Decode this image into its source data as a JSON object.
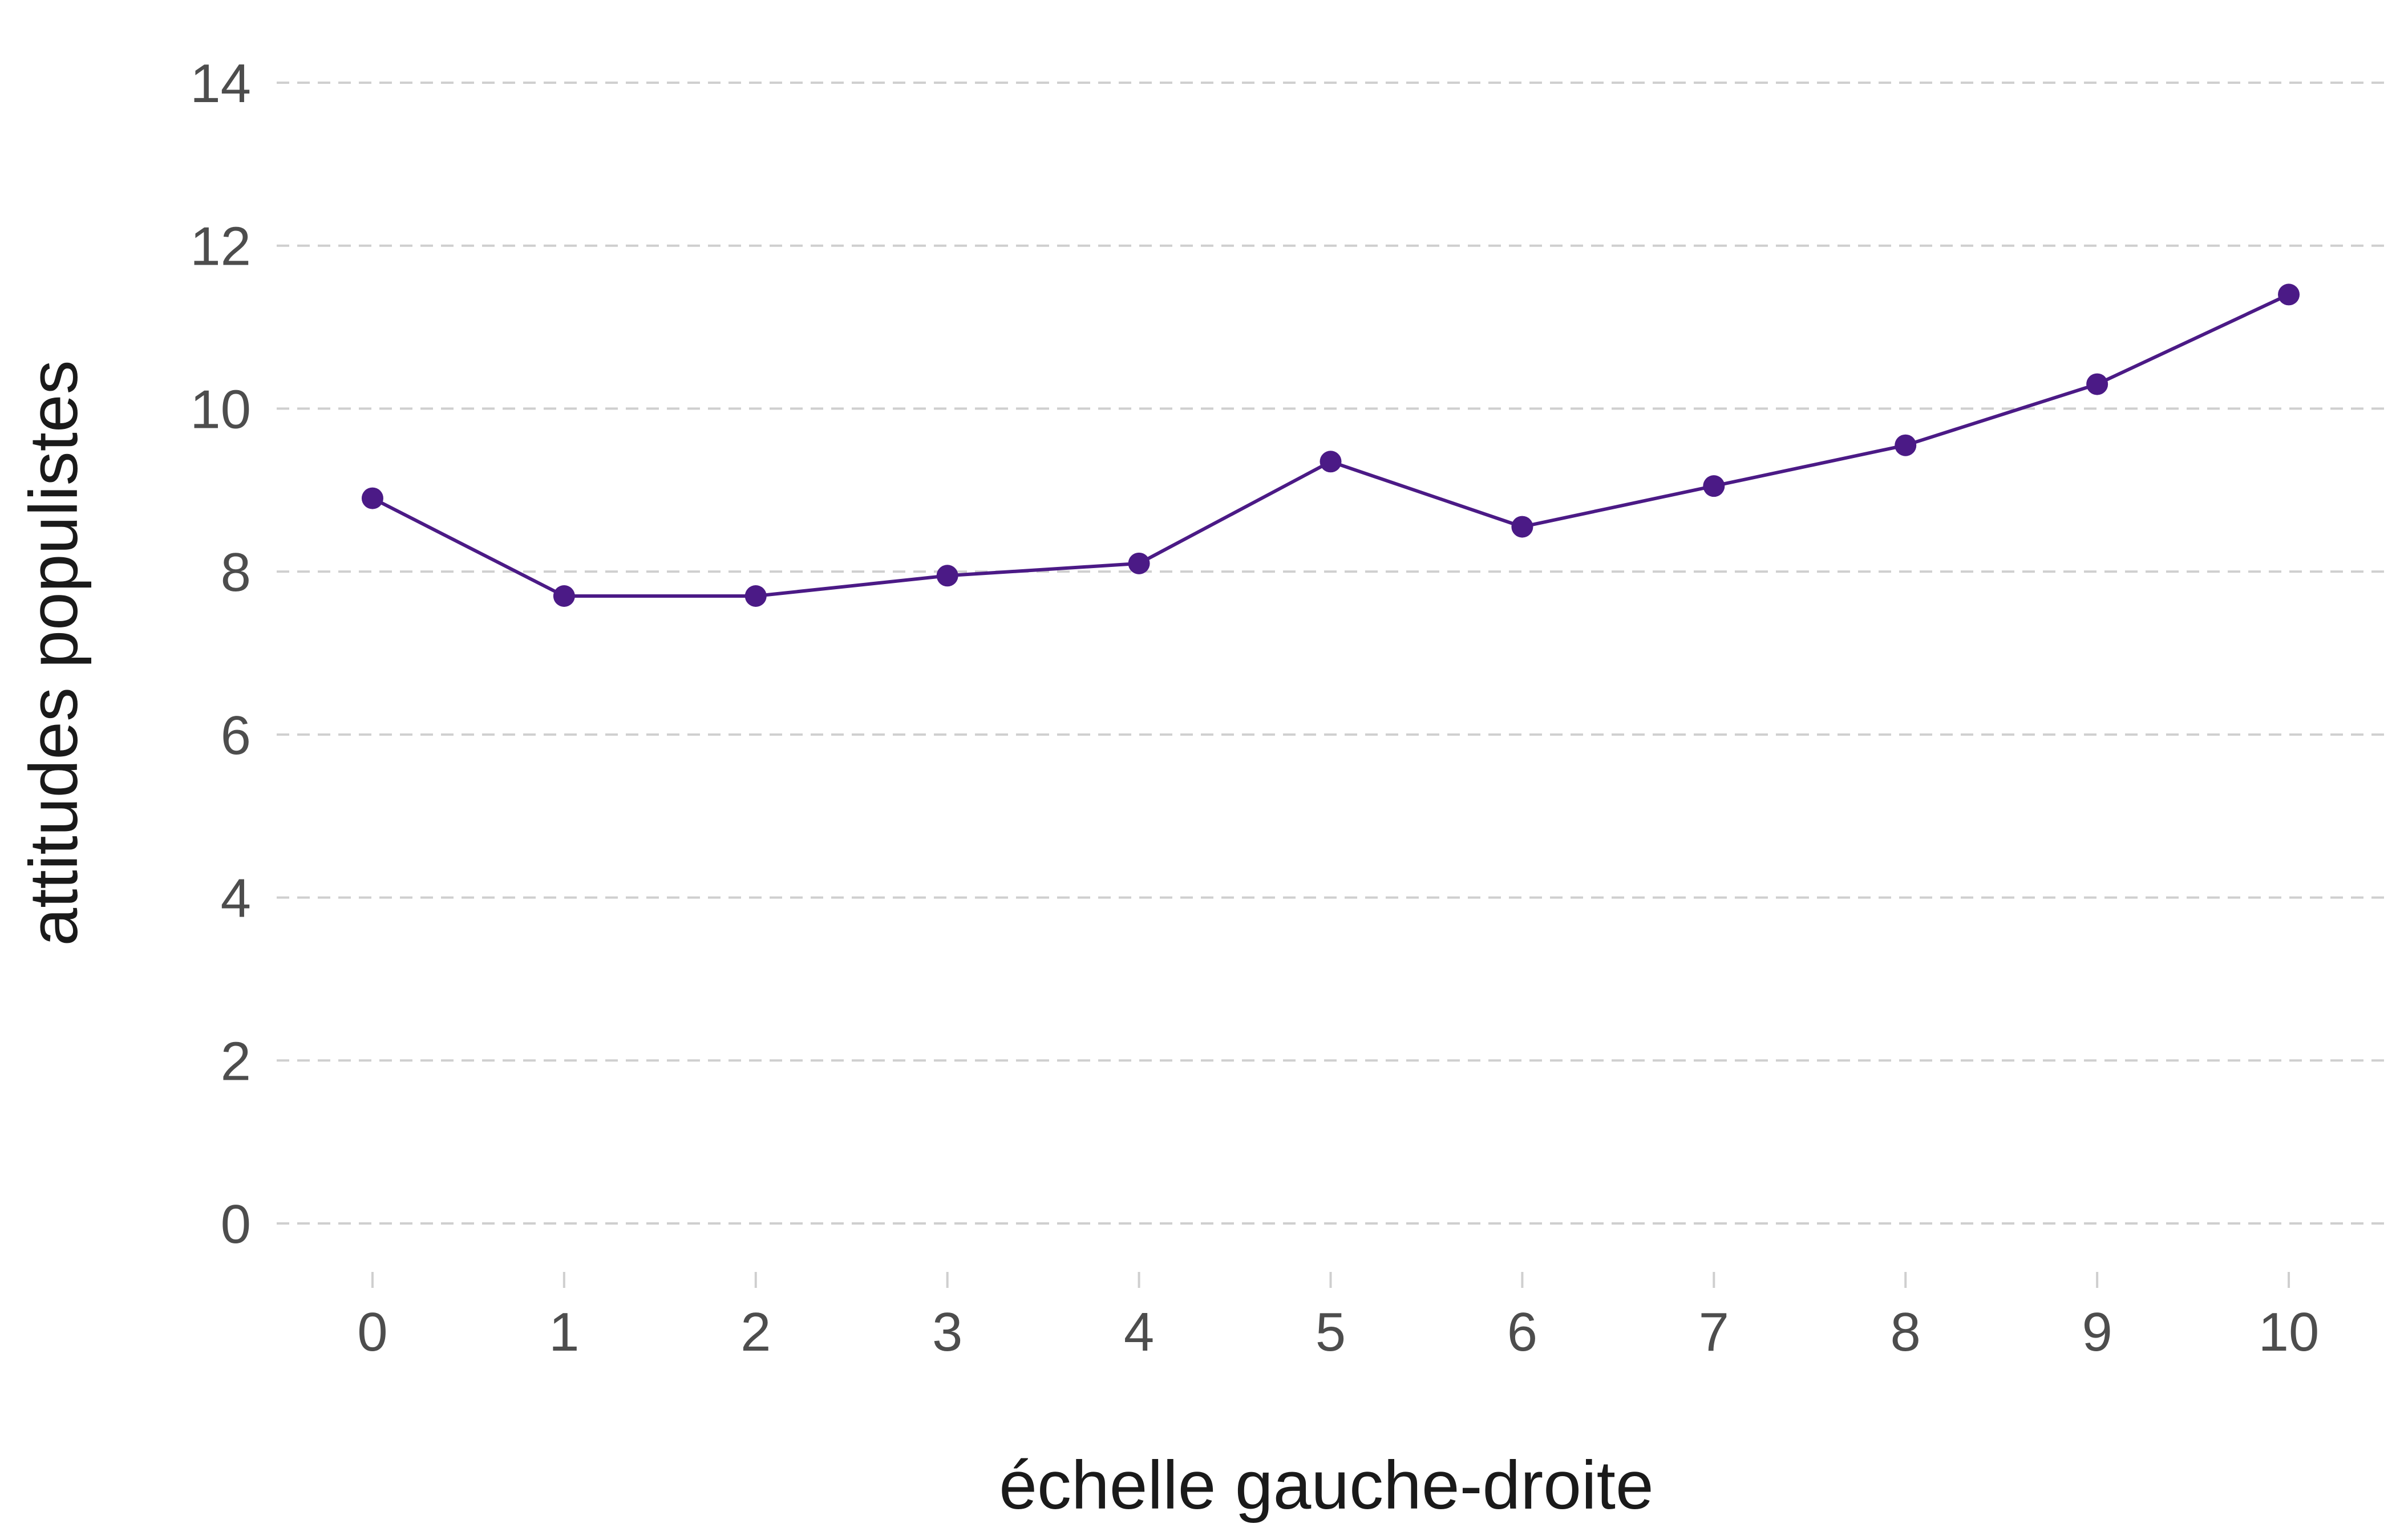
{
  "chart_data": {
    "type": "line",
    "title": "",
    "xlabel": "échelle gauche-droite",
    "ylabel": "attitudes populistes",
    "x": [
      0,
      1,
      2,
      3,
      4,
      5,
      6,
      7,
      8,
      9,
      10
    ],
    "series": [
      {
        "values": [
          8.9,
          7.7,
          7.7,
          7.95,
          8.1,
          9.35,
          8.55,
          9.05,
          9.55,
          10.3,
          11.4
        ],
        "color": "#4b1a86"
      }
    ],
    "xlim": [
      -0.5,
      10.5
    ],
    "ylim": [
      0,
      14
    ],
    "xticks": [
      "0",
      "1",
      "2",
      "3",
      "4",
      "5",
      "6",
      "7",
      "8",
      "9",
      "10"
    ],
    "yticks": [
      "0",
      "2",
      "4",
      "6",
      "8",
      "10",
      "12",
      "14"
    ],
    "grid": "horizontal-dashed",
    "legend": "none"
  }
}
